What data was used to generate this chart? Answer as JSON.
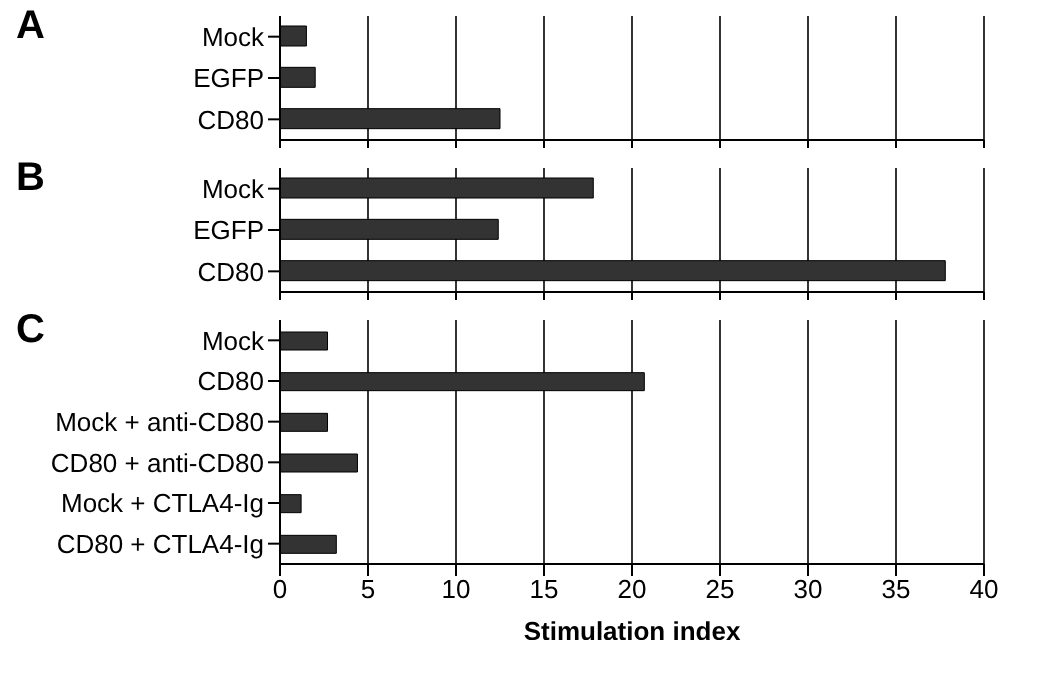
{
  "chart_data": [
    {
      "type": "bar",
      "title": "A",
      "orientation": "horizontal",
      "categories": [
        "Mock",
        "EGFP",
        "CD80"
      ],
      "values": [
        1.5,
        2,
        12.5
      ],
      "color": "#333333",
      "xlim": [
        0,
        40
      ],
      "xticks": [
        0,
        5,
        10,
        15,
        20,
        25,
        30,
        35,
        40
      ],
      "grid": "x",
      "tick_labels": "y"
    },
    {
      "type": "bar",
      "title": "B",
      "orientation": "horizontal",
      "categories": [
        "Mock",
        "EGFP",
        "CD80"
      ],
      "values": [
        17.8,
        12.4,
        37.8
      ],
      "color": "#333333",
      "xlim": [
        0,
        40
      ],
      "xticks": [
        0,
        5,
        10,
        15,
        20,
        25,
        30,
        35,
        40
      ],
      "grid": "x",
      "tick_labels": "y"
    },
    {
      "type": "bar",
      "title": "C",
      "orientation": "horizontal",
      "categories": [
        "Mock",
        "CD80",
        "Mock + anti-CD80",
        "CD80 + anti-CD80",
        "Mock + CTLA4-Ig",
        "CD80 + CTLA4-Ig"
      ],
      "values": [
        2.7,
        20.7,
        2.7,
        4.4,
        1.2,
        3.2
      ],
      "color": "#333333",
      "xlim": [
        0,
        40
      ],
      "xticks": [
        0,
        5,
        10,
        15,
        20,
        25,
        30,
        35,
        40
      ],
      "grid": "x",
      "xlabel": "Stimulation index"
    }
  ]
}
